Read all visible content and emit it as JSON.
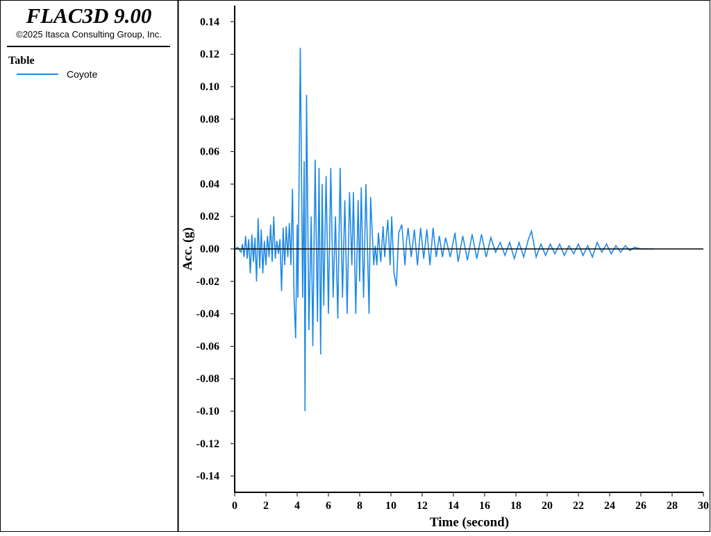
{
  "header": {
    "title": "FLAC3D 9.00",
    "copyright": "©2025 Itasca Consulting Group, Inc."
  },
  "chart_data": {
    "type": "line",
    "legend_title": "Table",
    "x_label": "Time (second)",
    "y_label": "Acc. (g)",
    "xlim": [
      0,
      30
    ],
    "ylim": [
      -0.15,
      0.15
    ],
    "xticks": [
      0,
      2,
      4,
      6,
      8,
      10,
      12,
      14,
      16,
      18,
      20,
      22,
      24,
      26,
      28,
      30
    ],
    "yticks": [
      -0.14,
      -0.12,
      {
        "value": -0.1,
        "label": "-0.10"
      },
      -0.08,
      -0.06,
      -0.04,
      -0.02,
      {
        "value": 0,
        "label": "0.00"
      },
      0.02,
      0.04,
      0.06,
      0.08,
      {
        "value": 0.1,
        "label": "0.10"
      },
      0.12,
      0.14
    ],
    "zero_line": true,
    "x": [
      0.0,
      0.2,
      0.4,
      0.5,
      0.6,
      0.7,
      0.8,
      0.9,
      1.0,
      1.1,
      1.2,
      1.3,
      1.4,
      1.5,
      1.6,
      1.7,
      1.8,
      1.9,
      2.0,
      2.1,
      2.2,
      2.3,
      2.4,
      2.5,
      2.6,
      2.7,
      2.8,
      2.9,
      3.0,
      3.1,
      3.2,
      3.3,
      3.4,
      3.5,
      3.6,
      3.7,
      3.8,
      3.9,
      4.0,
      4.05,
      4.2,
      4.35,
      4.45,
      4.5,
      4.6,
      4.75,
      4.9,
      5.0,
      5.15,
      5.3,
      5.4,
      5.5,
      5.6,
      5.7,
      5.85,
      6.0,
      6.15,
      6.3,
      6.45,
      6.6,
      6.75,
      6.9,
      7.05,
      7.2,
      7.35,
      7.5,
      7.6,
      7.75,
      7.9,
      8.0,
      8.1,
      8.25,
      8.4,
      8.6,
      8.7,
      8.9,
      9.0,
      9.1,
      9.2,
      9.35,
      9.5,
      9.6,
      9.8,
      9.95,
      10.05,
      10.2,
      10.35,
      10.5,
      10.7,
      10.9,
      11.0,
      11.1,
      11.3,
      11.5,
      11.7,
      11.9,
      12.1,
      12.3,
      12.5,
      12.7,
      12.9,
      13.1,
      13.3,
      13.5,
      13.8,
      14.1,
      14.3,
      14.6,
      14.9,
      15.2,
      15.5,
      15.8,
      16.1,
      16.4,
      16.7,
      17.0,
      17.3,
      17.6,
      17.9,
      18.2,
      18.5,
      18.8,
      19.0,
      19.3,
      19.6,
      19.9,
      20.2,
      20.5,
      20.8,
      21.1,
      21.4,
      21.7,
      22.0,
      22.3,
      22.6,
      22.9,
      23.2,
      23.5,
      23.8,
      24.1,
      24.4,
      24.7,
      25.0,
      25.3,
      25.6,
      26.0,
      26.8
    ],
    "series": [
      {
        "name": "Coyote",
        "color": "#1e88e5",
        "values": [
          0,
          0.001,
          -0.002,
          0.003,
          -0.005,
          0.008,
          -0.006,
          0.006,
          -0.015,
          0.009,
          -0.008,
          0.007,
          -0.02,
          0.019,
          -0.012,
          0.012,
          -0.015,
          0.005,
          -0.01,
          0.008,
          -0.005,
          0.015,
          -0.008,
          0.02,
          -0.006,
          0.005,
          -0.003,
          0.006,
          -0.026,
          0.013,
          -0.01,
          0.014,
          -0.005,
          0.016,
          -0.01,
          0.037,
          -0.03,
          -0.055,
          0.015,
          -0.03,
          0.124,
          -0.03,
          0.054,
          -0.1,
          0.095,
          -0.05,
          0.02,
          -0.06,
          0.055,
          -0.045,
          0.05,
          -0.065,
          0.04,
          -0.035,
          0.045,
          -0.04,
          0.05,
          -0.03,
          0.02,
          -0.043,
          0.05,
          -0.03,
          0.03,
          -0.04,
          0.035,
          -0.01,
          0.035,
          -0.04,
          0.03,
          -0.02,
          0.038,
          -0.03,
          0.04,
          -0.04,
          0.032,
          -0.01,
          0.002,
          -0.01,
          0.01,
          -0.008,
          0.014,
          -0.005,
          0.018,
          -0.01,
          0.02,
          -0.015,
          -0.023,
          0.01,
          0.015,
          -0.01,
          0.005,
          0.013,
          -0.005,
          0.012,
          -0.01,
          0.013,
          -0.006,
          0.012,
          -0.01,
          0.013,
          -0.005,
          0.008,
          -0.005,
          0.007,
          -0.005,
          0.01,
          -0.008,
          0.008,
          -0.007,
          0.009,
          -0.006,
          0.009,
          -0.005,
          0.007,
          -0.002,
          0.004,
          -0.004,
          0.004,
          -0.006,
          0.004,
          -0.005,
          0.006,
          0.011,
          -0.005,
          0.003,
          -0.004,
          0.003,
          -0.003,
          0.003,
          -0.004,
          0.002,
          -0.003,
          0.003,
          -0.004,
          0.002,
          -0.005,
          0.004,
          -0.002,
          0.003,
          -0.003,
          0.002,
          -0.002,
          0.002,
          -0.001,
          0.001,
          0,
          0
        ]
      }
    ]
  }
}
